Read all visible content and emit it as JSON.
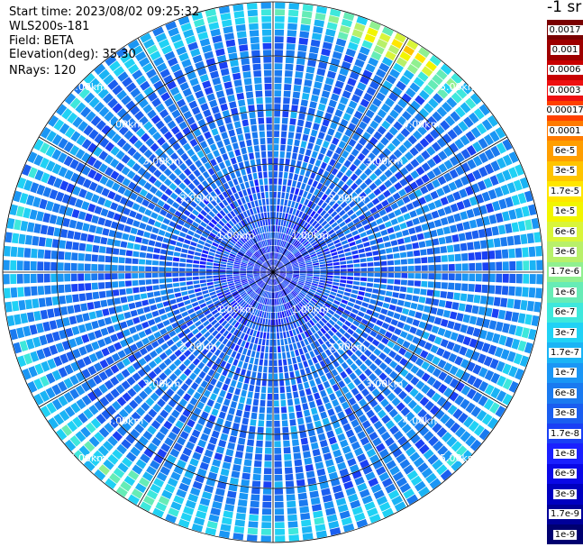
{
  "info": {
    "start_time": "Start time: 2023/08/02 09:25:32",
    "instrument": "WLS200s-181",
    "field": "Field: BETA",
    "elevation": "Elevation(deg): 35.30",
    "nrays": "NRays: 120"
  },
  "colorbar": {
    "unit": "-1 sr",
    "labels": [
      "0.0017",
      "0.001",
      "0.0006",
      "0.0003",
      "0.00017",
      "0.0001",
      "6e-5",
      "3e-5",
      "1.7e-5",
      "1e-5",
      "6e-6",
      "3e-6",
      "1.7e-6",
      "1e-6",
      "6e-7",
      "3e-7",
      "1.7e-7",
      "1e-7",
      "6e-8",
      "3e-8",
      "1.7e-8",
      "1e-8",
      "6e-9",
      "3e-9",
      "1.7e-9",
      "1e-9"
    ],
    "colors": [
      "#7a0000",
      "#9e0000",
      "#c80000",
      "#ee1010",
      "#ff4000",
      "#ff7a00",
      "#ff9e00",
      "#ffc400",
      "#ffe600",
      "#f2f500",
      "#d9f53a",
      "#b8f06a",
      "#90f090",
      "#66ecb6",
      "#3ee8dc",
      "#20d2f5",
      "#1ab4f5",
      "#1a96f5",
      "#1a7af0",
      "#1a5ef0",
      "#1a40f5",
      "#1a20ff",
      "#0a08e6",
      "#0000c0",
      "#000099",
      "#000070"
    ]
  },
  "chart_data": {
    "type": "heatmap",
    "projection": "polar (PPI scan)",
    "field": "BETA",
    "nrays": 120,
    "elevation_deg": 35.3,
    "range_rings_km": [
      1.0,
      2.0,
      3.0,
      4.0,
      5.0
    ],
    "ring_labels": [
      "1.00km",
      "2.00km",
      "3.00km",
      "4.00km",
      "5.00km"
    ],
    "spokes_deg": [
      0,
      30,
      60,
      90,
      120,
      150,
      180,
      210,
      240,
      270,
      300,
      330
    ],
    "range_max_km": 5.0,
    "range_gates": 40,
    "colorscale_min": "1e-9",
    "colorscale_max": "0.0017",
    "colorscale": "log",
    "approx_profile": [
      {
        "range_km": 0.5,
        "beta_level": "1e-8 to 3e-8"
      },
      {
        "range_km": 1.5,
        "beta_level": "3e-8 to 1e-7"
      },
      {
        "range_km": 3.0,
        "beta_level": "1e-8 to 1e-7"
      },
      {
        "range_km": 4.6,
        "beta_level": "3e-8 to 1e-6"
      },
      {
        "range_km": 4.8,
        "beta_level": "up to 1e-5 (north-east sector)"
      }
    ]
  }
}
